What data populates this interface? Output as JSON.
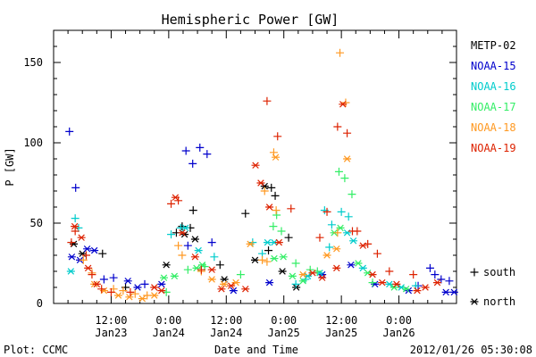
{
  "chart_data": {
    "type": "scatter",
    "title": "Hemispheric Power [GW]",
    "xlabel": "Date and Time",
    "ylabel": "P [GW]",
    "ylim": [
      0,
      170
    ],
    "xlim": [
      0,
      84
    ],
    "x_unit": "hours since Jan23 00:00",
    "yticks": [
      0,
      50,
      100,
      150
    ],
    "xticks": [
      {
        "x": 12,
        "top": "12:00",
        "bottom": "Jan23"
      },
      {
        "x": 24,
        "top": "0:00",
        "bottom": "Jan24"
      },
      {
        "x": 36,
        "top": "12:00",
        "bottom": "Jan24"
      },
      {
        "x": 48,
        "top": "0:00",
        "bottom": "Jan25"
      },
      {
        "x": 60,
        "top": "12:00",
        "bottom": "Jan25"
      },
      {
        "x": 72,
        "top": "0:00",
        "bottom": "Jan26"
      }
    ],
    "legend": {
      "placement": "right",
      "marker_key": [
        {
          "symbol": "+",
          "label": "south"
        },
        {
          "symbol": "*",
          "label": "north"
        }
      ]
    },
    "grid": false,
    "series": [
      {
        "name": "METP-02",
        "color": "#000000",
        "south": [
          [
            25.6,
            44
          ],
          [
            26.8,
            48
          ],
          [
            29.1,
            58
          ],
          [
            45.4,
            72
          ],
          [
            46.2,
            67
          ],
          [
            49.0,
            41
          ],
          [
            28.5,
            47
          ],
          [
            34.7,
            24
          ],
          [
            40.0,
            56
          ],
          [
            44.8,
            33
          ],
          [
            15.0,
            10
          ],
          [
            10.2,
            31
          ]
        ],
        "north": [
          [
            4.2,
            37
          ],
          [
            6.0,
            31
          ],
          [
            27.3,
            43
          ],
          [
            29.5,
            40
          ],
          [
            44.0,
            73
          ],
          [
            42.0,
            27
          ],
          [
            50.6,
            10
          ],
          [
            47.7,
            20
          ],
          [
            23.5,
            24
          ],
          [
            35.6,
            15
          ]
        ]
      },
      {
        "name": "NOAA-15",
        "color": "#0000cc",
        "south": [
          [
            3.3,
            107
          ],
          [
            4.6,
            72
          ],
          [
            27.6,
            95
          ],
          [
            29.0,
            87
          ],
          [
            30.5,
            97
          ],
          [
            32.0,
            93
          ],
          [
            28.0,
            36
          ],
          [
            33.0,
            38
          ],
          [
            10.5,
            15
          ],
          [
            12.5,
            16
          ],
          [
            19.0,
            12
          ],
          [
            78.5,
            22
          ],
          [
            79.5,
            18
          ],
          [
            82.5,
            14
          ],
          [
            76.0,
            11
          ],
          [
            80.8,
            15
          ]
        ],
        "north": [
          [
            3.8,
            29
          ],
          [
            5.5,
            27
          ],
          [
            7.0,
            34
          ],
          [
            8.5,
            33
          ],
          [
            15.5,
            14
          ],
          [
            17.5,
            10
          ],
          [
            22.5,
            12
          ],
          [
            37.5,
            8
          ],
          [
            45.0,
            13
          ],
          [
            56.0,
            18
          ],
          [
            62.0,
            24
          ],
          [
            67.0,
            12
          ],
          [
            74.0,
            8
          ],
          [
            83.5,
            7
          ],
          [
            81.8,
            7
          ]
        ]
      },
      {
        "name": "NOAA-16",
        "color": "#00cccc",
        "south": [
          [
            4.5,
            53
          ],
          [
            5.2,
            47
          ],
          [
            24.5,
            43
          ],
          [
            26.5,
            47
          ],
          [
            33.5,
            29
          ],
          [
            41.5,
            38
          ],
          [
            43.5,
            31
          ],
          [
            50.5,
            12
          ],
          [
            56.5,
            58
          ],
          [
            58.0,
            49
          ],
          [
            60.0,
            57
          ],
          [
            61.5,
            54
          ],
          [
            57.5,
            35
          ],
          [
            75.5,
            11
          ],
          [
            52.5,
            15
          ]
        ],
        "north": [
          [
            3.6,
            20
          ],
          [
            27.5,
            47
          ],
          [
            30.2,
            33
          ],
          [
            44.6,
            38
          ],
          [
            46.0,
            38
          ],
          [
            53.0,
            17
          ],
          [
            55.5,
            19
          ],
          [
            61.2,
            44
          ],
          [
            62.5,
            39
          ],
          [
            64.5,
            22
          ],
          [
            70.0,
            12
          ],
          [
            72.5,
            10
          ]
        ]
      },
      {
        "name": "NOAA-17",
        "color": "#33ee66",
        "south": [
          [
            59.5,
            82
          ],
          [
            60.7,
            78
          ],
          [
            62.2,
            68
          ],
          [
            46.5,
            55
          ],
          [
            47.5,
            45
          ],
          [
            45.8,
            48
          ],
          [
            31.5,
            23
          ],
          [
            28.0,
            21
          ],
          [
            39.0,
            18
          ],
          [
            50.5,
            25
          ],
          [
            53.5,
            21
          ],
          [
            55.0,
            20
          ],
          [
            23.5,
            7
          ],
          [
            66.5,
            13
          ]
        ],
        "north": [
          [
            23.0,
            16
          ],
          [
            25.2,
            17
          ],
          [
            29.8,
            22
          ],
          [
            31.0,
            24
          ],
          [
            46.0,
            28
          ],
          [
            47.9,
            29
          ],
          [
            49.8,
            17
          ],
          [
            52.0,
            14
          ],
          [
            58.5,
            44
          ],
          [
            59.8,
            47
          ],
          [
            63.5,
            25
          ],
          [
            65.5,
            19
          ],
          [
            71.0,
            10
          ],
          [
            73.5,
            9
          ]
        ]
      },
      {
        "name": "NOAA-18",
        "color": "#ff9922",
        "south": [
          [
            59.7,
            156
          ],
          [
            60.9,
            125
          ],
          [
            45.9,
            94
          ],
          [
            44.0,
            70
          ],
          [
            46.4,
            58
          ],
          [
            59.2,
            44
          ],
          [
            6.2,
            27
          ],
          [
            8.0,
            19
          ],
          [
            12.5,
            9
          ],
          [
            14.5,
            8
          ],
          [
            17.0,
            6
          ],
          [
            19.5,
            5
          ],
          [
            26.0,
            36
          ],
          [
            26.8,
            30
          ],
          [
            30.8,
            20
          ],
          [
            43.5,
            27
          ],
          [
            44.5,
            26
          ]
        ],
        "north": [
          [
            61.2,
            90
          ],
          [
            46.3,
            91
          ],
          [
            59.0,
            34
          ],
          [
            8.5,
            12
          ],
          [
            10.5,
            8
          ],
          [
            13.5,
            5
          ],
          [
            15.8,
            4
          ],
          [
            18.5,
            3
          ],
          [
            21.0,
            5
          ],
          [
            33.0,
            15
          ],
          [
            35.5,
            12
          ],
          [
            38.0,
            13
          ],
          [
            41.0,
            37
          ],
          [
            52.0,
            18
          ],
          [
            57.0,
            30
          ]
        ]
      },
      {
        "name": "NOAA-19",
        "color": "#dd2200",
        "south": [
          [
            44.5,
            126
          ],
          [
            46.7,
            104
          ],
          [
            59.2,
            110
          ],
          [
            61.2,
            106
          ],
          [
            49.5,
            59
          ],
          [
            55.5,
            41
          ],
          [
            57.0,
            57
          ],
          [
            62.3,
            45
          ],
          [
            63.3,
            45
          ],
          [
            24.5,
            62
          ],
          [
            26.0,
            64
          ],
          [
            30.8,
            21
          ],
          [
            3.7,
            38
          ],
          [
            4.5,
            45
          ],
          [
            6.8,
            30
          ],
          [
            8.0,
            18
          ],
          [
            10.0,
            9
          ],
          [
            12.0,
            7
          ],
          [
            16.0,
            7
          ],
          [
            65.5,
            37
          ],
          [
            67.5,
            31
          ],
          [
            70.0,
            20
          ],
          [
            75.0,
            18
          ]
        ],
        "north": [
          [
            60.3,
            124
          ],
          [
            42.1,
            86
          ],
          [
            43.2,
            75
          ],
          [
            25.4,
            66
          ],
          [
            26.8,
            44
          ],
          [
            4.4,
            48
          ],
          [
            5.8,
            41
          ],
          [
            7.2,
            22
          ],
          [
            9.0,
            12
          ],
          [
            21.0,
            10
          ],
          [
            22.5,
            8
          ],
          [
            29.5,
            29
          ],
          [
            33.0,
            21
          ],
          [
            35.0,
            9
          ],
          [
            37.0,
            11
          ],
          [
            40.0,
            9
          ],
          [
            45.0,
            60
          ],
          [
            47.0,
            38
          ],
          [
            54.0,
            19
          ],
          [
            56.0,
            16
          ],
          [
            59.0,
            22
          ],
          [
            64.5,
            36
          ],
          [
            66.5,
            18
          ],
          [
            68.5,
            13
          ],
          [
            71.5,
            12
          ],
          [
            75.8,
            8
          ],
          [
            77.5,
            10
          ],
          [
            80.0,
            13
          ]
        ]
      }
    ]
  },
  "footer": {
    "left": "Plot: CCMC",
    "center": "Date and Time",
    "right": "2012/01/26 05:30:08"
  }
}
